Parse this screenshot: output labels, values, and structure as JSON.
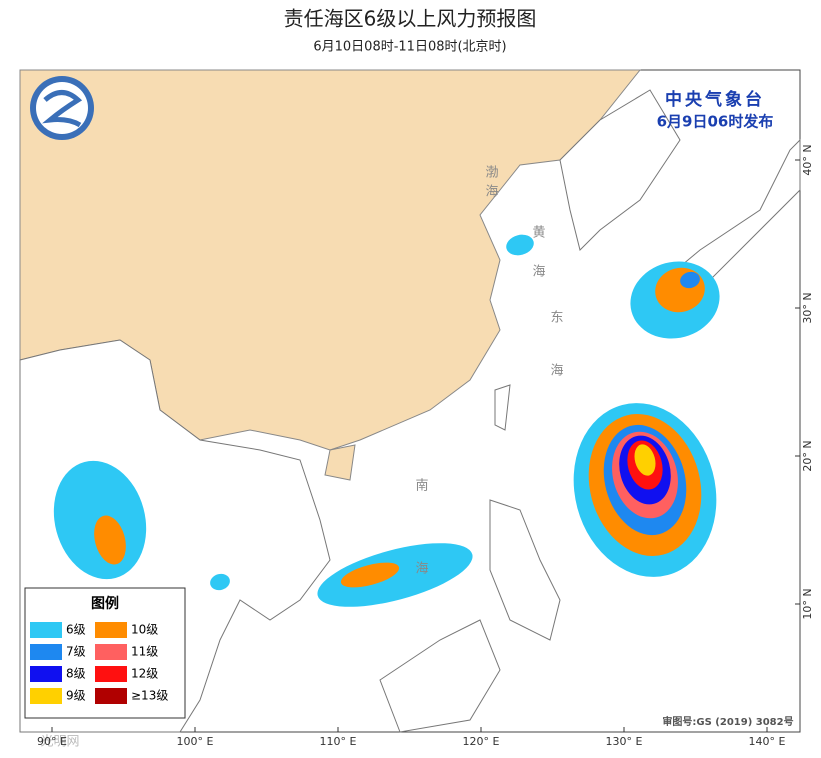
{
  "header": {
    "title": "责任海区6级以上风力预报图",
    "subtitle": "6月10日08时-11日08时(北京时)"
  },
  "issuer": {
    "agency": "中央气象台",
    "issued": "6月9日06时发布"
  },
  "map": {
    "sea_labels": [
      "渤海",
      "黄海",
      "东海",
      "南海"
    ],
    "lon_labels": [
      "90° E",
      "100° E",
      "110° E",
      "120° E",
      "130° E",
      "140° E"
    ],
    "lat_labels": [
      "40° N",
      "30° N",
      "20° N",
      "10° N"
    ],
    "approval": "审图号:GS (2019) 3082号"
  },
  "legend": {
    "title": "图例",
    "items": [
      {
        "label": "6级",
        "color": "#2ec8f4"
      },
      {
        "label": "10级",
        "color": "#ff8c00"
      },
      {
        "label": "7级",
        "color": "#1e88f0"
      },
      {
        "label": "11级",
        "color": "#ff6060"
      },
      {
        "label": "8级",
        "color": "#1010f0"
      },
      {
        "label": "12级",
        "color": "#ff1010"
      },
      {
        "label": "9级",
        "color": "#ffd000"
      },
      {
        "label": "≥13级",
        "color": "#b00000"
      }
    ]
  },
  "watermark": "光明网"
}
